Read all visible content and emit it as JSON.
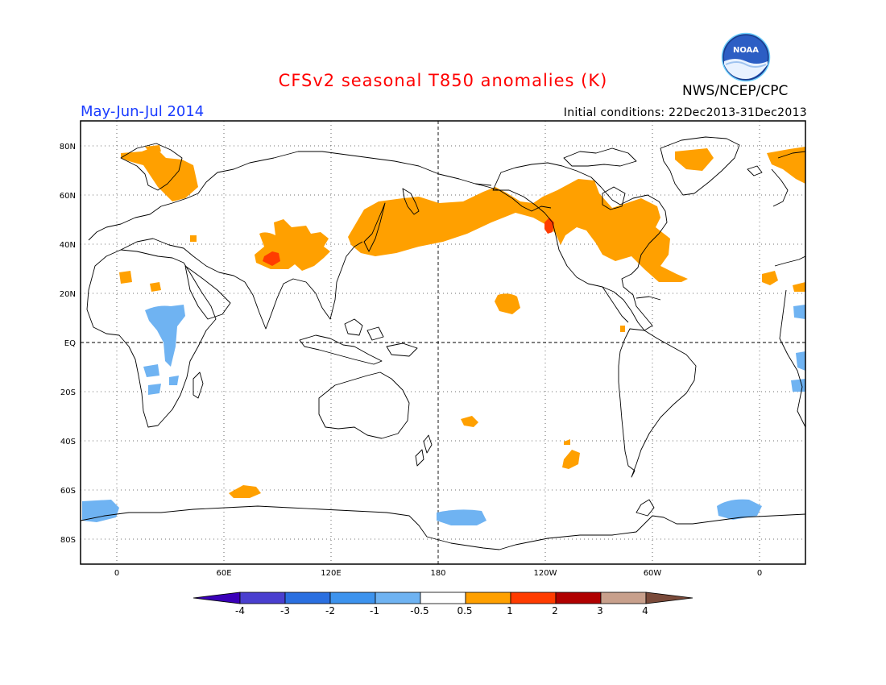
{
  "header": {
    "title": "CFSv2 seasonal T850 anomalies (K)",
    "season": "May-Jun-Jul 2014",
    "initial_conditions": "Initial conditions: 22Dec2013-31Dec2013",
    "agency": "NWS/NCEP/CPC",
    "logo_text": "NOAA",
    "logo_icon": "noaa-logo"
  },
  "map": {
    "projection": "equirectangular",
    "lon_labels": [
      "0",
      "60E",
      "120E",
      "180",
      "120W",
      "60W",
      "0"
    ],
    "lat_labels": [
      "80N",
      "60N",
      "40N",
      "20N",
      "EQ",
      "20S",
      "40S",
      "60S",
      "80S"
    ],
    "grid": "dotted",
    "anomaly_regions": [
      {
        "name": "Europe/Scandinavia",
        "level": "0.5-1"
      },
      {
        "name": "Central Asia",
        "level": "0.5-1 with 1-2 core"
      },
      {
        "name": "North Pacific band",
        "level": "0.5-1"
      },
      {
        "name": "Western North America",
        "level": "0.5-1 with 1-2 core"
      },
      {
        "name": "Eastern North America",
        "level": "0.5-1"
      },
      {
        "name": "Greenland",
        "level": "0.5-1"
      },
      {
        "name": "East Africa",
        "level": "-1 to -0.5"
      },
      {
        "name": "Antarctic coast",
        "level": "-1 to -0.5"
      }
    ]
  },
  "colorbar": {
    "labels": [
      "-4",
      "-3",
      "-2",
      "-1",
      "-0.5",
      "0.5",
      "1",
      "2",
      "3",
      "4"
    ],
    "colors": [
      "#3a00b8",
      "#4a3fcf",
      "#2a6fe0",
      "#3d93ee",
      "#6fb3f2",
      "#ffffff",
      "#ffa000",
      "#ff3c00",
      "#b00000",
      "#c8a08c",
      "#7a4a3a"
    ]
  }
}
